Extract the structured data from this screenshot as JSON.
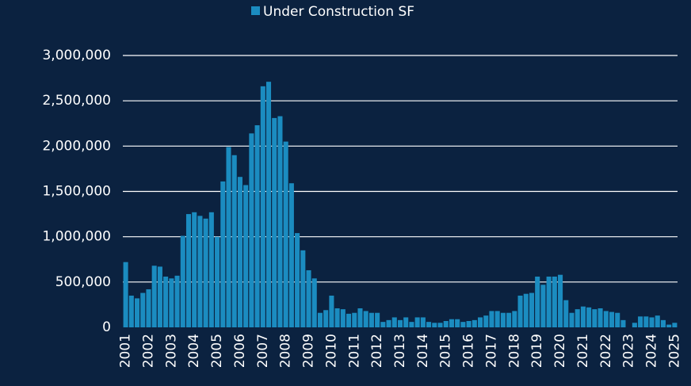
{
  "chart_data": {
    "type": "bar",
    "categories": [
      "2001",
      null,
      null,
      null,
      "2002",
      null,
      null,
      null,
      "2003",
      null,
      null,
      null,
      "2004",
      null,
      null,
      null,
      "2005",
      null,
      null,
      null,
      "2006",
      null,
      null,
      null,
      "2007",
      null,
      null,
      null,
      "2008",
      null,
      null,
      null,
      "2009",
      null,
      null,
      null,
      "2010",
      null,
      null,
      null,
      "2011",
      null,
      null,
      null,
      "2012",
      null,
      null,
      null,
      "2013",
      null,
      null,
      null,
      "2014",
      null,
      null,
      null,
      "2015",
      null,
      null,
      null,
      "2016",
      null,
      null,
      null,
      "2017",
      null,
      null,
      null,
      "2018",
      null,
      null,
      null,
      "2019",
      null,
      null,
      null,
      "2020",
      null,
      null,
      null,
      "2021",
      null,
      null,
      null,
      "2022",
      null,
      null,
      null,
      "2023",
      null,
      null,
      null,
      "2024",
      null,
      null,
      null,
      "2025"
    ],
    "series": [
      {
        "name": "Under Construction SF",
        "color": "#1b8cc0",
        "values": [
          720000,
          350000,
          320000,
          380000,
          420000,
          680000,
          670000,
          560000,
          540000,
          570000,
          1010000,
          1250000,
          1270000,
          1230000,
          1200000,
          1270000,
          1000000,
          1610000,
          1990000,
          1900000,
          1660000,
          1570000,
          2140000,
          2230000,
          2660000,
          2710000,
          2310000,
          2330000,
          2050000,
          1590000,
          1040000,
          850000,
          630000,
          540000,
          160000,
          190000,
          350000,
          210000,
          200000,
          150000,
          160000,
          210000,
          180000,
          160000,
          160000,
          60000,
          80000,
          110000,
          80000,
          110000,
          60000,
          110000,
          110000,
          60000,
          50000,
          50000,
          70000,
          90000,
          90000,
          60000,
          70000,
          80000,
          110000,
          130000,
          180000,
          180000,
          160000,
          160000,
          180000,
          350000,
          370000,
          380000,
          560000,
          470000,
          560000,
          560000,
          580000,
          300000,
          160000,
          200000,
          230000,
          220000,
          200000,
          210000,
          180000,
          170000,
          160000,
          80000,
          0,
          50000,
          120000,
          120000,
          110000,
          130000,
          80000,
          30000,
          50000
        ]
      }
    ],
    "ylim": [
      0,
      3000000
    ],
    "yticks": [
      0,
      {
        "value": 500000,
        "label": "500,000"
      },
      {
        "value": 1000000,
        "label": "1,000,000"
      },
      {
        "value": 1500000,
        "label": "1,500,000"
      },
      {
        "value": 2000000,
        "label": "2,000,000"
      },
      {
        "value": 2500000,
        "label": "2,500,000"
      },
      {
        "value": 3000000,
        "label": "3,000,000"
      }
    ],
    "grid": true,
    "legend": "top"
  }
}
